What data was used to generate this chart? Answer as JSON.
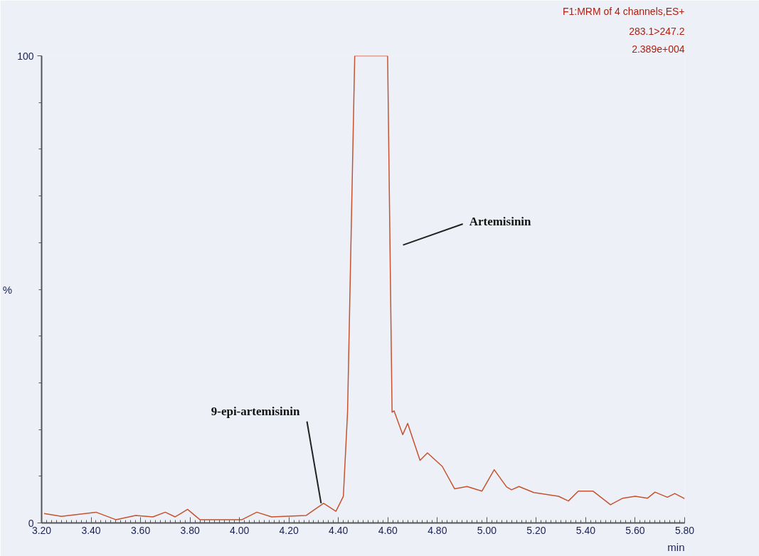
{
  "chart_data": {
    "type": "line",
    "x": [
      3.21,
      3.28,
      3.42,
      3.5,
      3.58,
      3.65,
      3.7,
      3.74,
      3.79,
      3.84,
      3.94,
      4.01,
      4.07,
      4.13,
      4.27,
      4.34,
      4.39,
      4.42,
      4.437,
      4.466,
      4.599,
      4.617,
      4.625,
      4.66,
      4.68,
      4.73,
      4.76,
      4.82,
      4.87,
      4.92,
      4.98,
      5.03,
      5.08,
      5.1,
      5.13,
      5.19,
      5.29,
      5.33,
      5.37,
      5.43,
      5.5,
      5.55,
      5.6,
      5.65,
      5.68,
      5.73,
      5.76,
      5.8
    ],
    "series": [
      {
        "color": "#c4532e",
        "values": [
          2.0,
          1.4,
          2.3,
          0.7,
          1.6,
          1.3,
          2.3,
          1.3,
          2.9,
          0.7,
          0.7,
          0.7,
          2.3,
          1.3,
          1.6,
          4.2,
          2.5,
          5.7,
          23.7,
          100,
          100,
          23.7,
          24.0,
          18.9,
          21.3,
          13.4,
          15.0,
          12.1,
          7.3,
          7.8,
          6.8,
          11.4,
          7.7,
          7.1,
          7.8,
          6.5,
          5.7,
          4.7,
          6.8,
          6.8,
          3.9,
          5.3,
          5.7,
          5.3,
          6.6,
          5.5,
          6.3,
          5.2
        ]
      }
    ],
    "xlabel": "min",
    "ylabel": "%",
    "xlim": [
      3.2,
      5.8
    ],
    "xticks": [
      {
        "value": 3.2,
        "label": "3.20"
      },
      {
        "value": 3.4,
        "label": "3.40"
      },
      {
        "value": 3.6,
        "label": "3.60"
      },
      {
        "value": 3.8,
        "label": "3.80"
      },
      {
        "value": 4.0,
        "label": "4.00"
      },
      {
        "value": 4.2,
        "label": "4.20"
      },
      {
        "value": 4.4,
        "label": "4.40"
      },
      {
        "value": 4.6,
        "label": "4.60"
      },
      {
        "value": 4.8,
        "label": "4.80"
      },
      {
        "value": 5.0,
        "label": "5.00"
      },
      {
        "value": 5.2,
        "label": "5.20"
      },
      {
        "value": 5.4,
        "label": "5.40"
      },
      {
        "value": 5.6,
        "label": "5.60"
      },
      {
        "value": 5.8,
        "label": "5.80"
      }
    ],
    "ylim": [
      0,
      100
    ],
    "yticks": [
      0,
      100
    ],
    "grid": false,
    "marker": "none",
    "line_style": "solid",
    "annotations": [
      "F1:MRM of 4 channels,ES+",
      "283.1>247.2",
      "2.389e+004",
      {
        "text": "9-epi-artemisinin",
        "x": 4.33,
        "y": 4.2
      },
      "Artemisinin"
    ]
  }
}
